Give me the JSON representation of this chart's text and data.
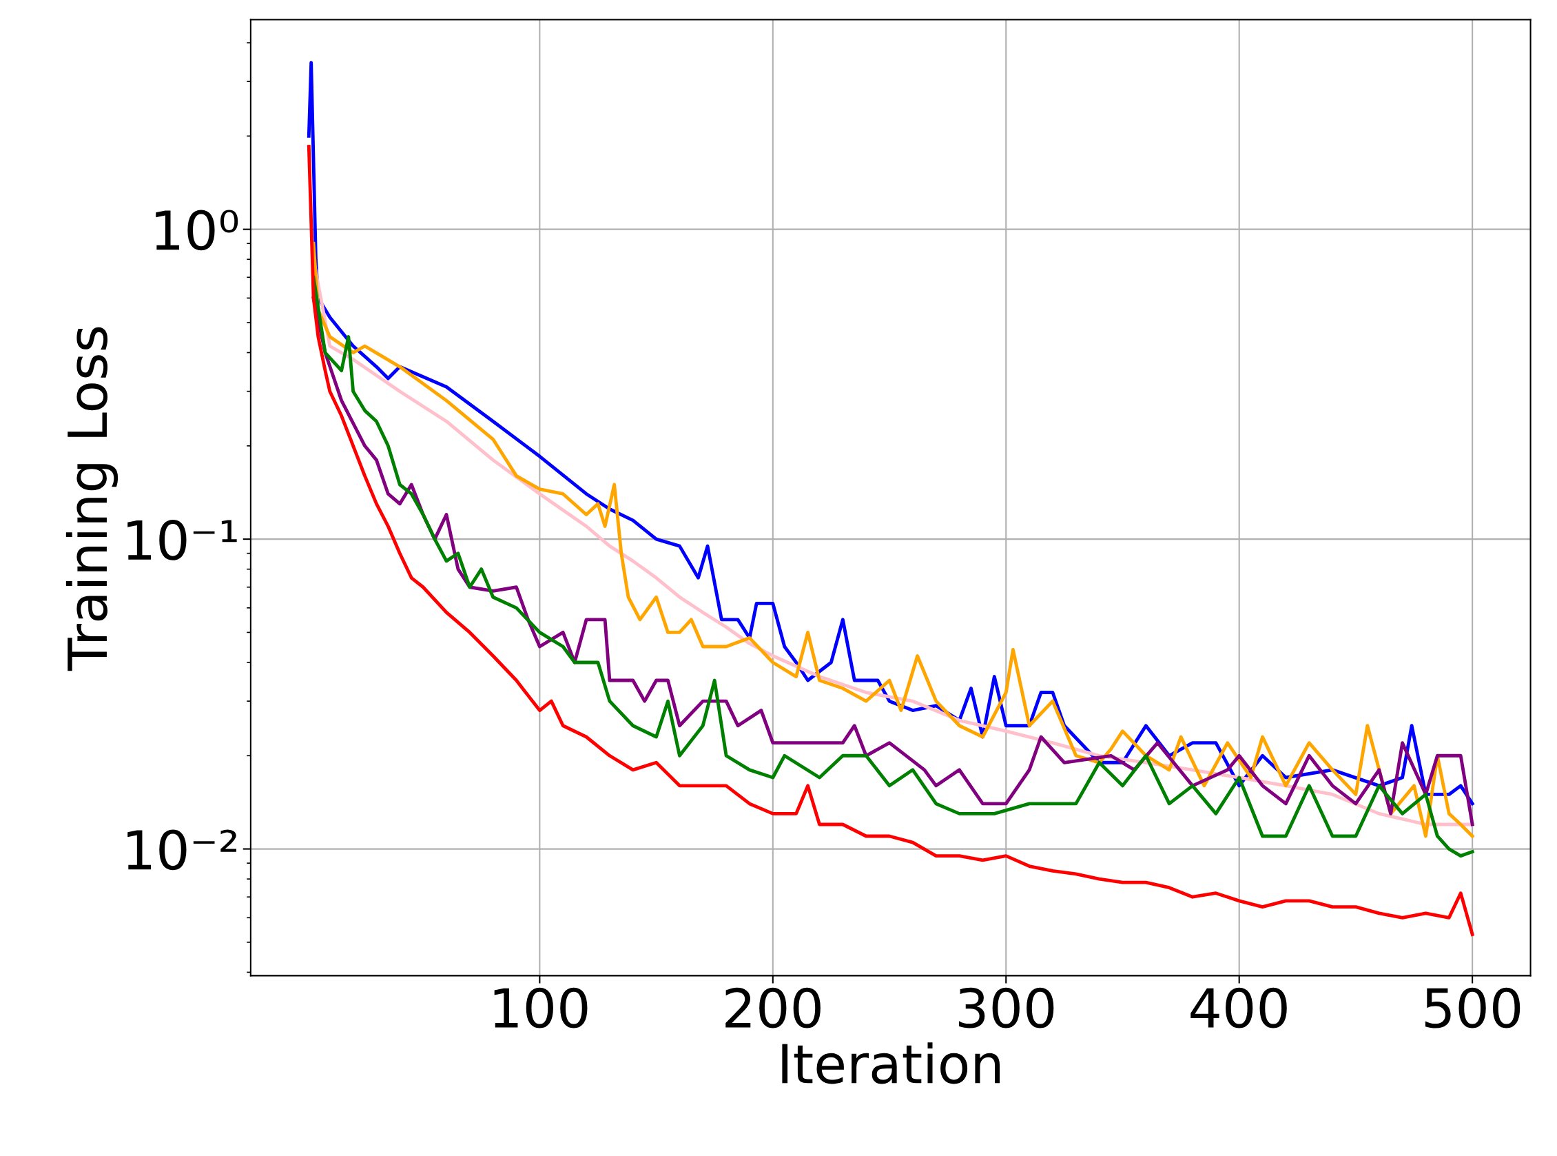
{
  "chart_data": {
    "type": "line",
    "xlabel": "Iteration",
    "ylabel": "Training Loss",
    "log": "y",
    "grid": true,
    "marker": "none",
    "line_style": "solid",
    "xlim": [
      -23.95,
      524.95
    ],
    "xticks": [
      100,
      200,
      300,
      400,
      500
    ],
    "ylim": [
      0.0039,
      4.75
    ],
    "yticks": [
      {
        "value": 1,
        "label": "10⁰"
      },
      {
        "value": 0.1,
        "label": "10⁻¹"
      },
      {
        "value": 0.01,
        "label": "10⁻²"
      }
    ],
    "series": [
      {
        "color": "#0000ff",
        "x": [
          1,
          2,
          4,
          5,
          10,
          20,
          30,
          35,
          40,
          60,
          80,
          100,
          120,
          130,
          140,
          150,
          160,
          168,
          172,
          178,
          185,
          190,
          193,
          200,
          205,
          210,
          215,
          225,
          230,
          235,
          245,
          250,
          260,
          270,
          280,
          285,
          290,
          295,
          300,
          310,
          315,
          320,
          325,
          340,
          350,
          360,
          370,
          380,
          390,
          400,
          410,
          420,
          440,
          460,
          470,
          474,
          480,
          490,
          495,
          500
        ],
        "values": [
          2.0,
          3.45,
          0.8,
          0.6,
          0.52,
          0.42,
          0.36,
          0.33,
          0.36,
          0.31,
          0.24,
          0.185,
          0.14,
          0.125,
          0.115,
          0.1,
          0.095,
          0.075,
          0.095,
          0.055,
          0.055,
          0.048,
          0.062,
          0.062,
          0.045,
          0.04,
          0.035,
          0.04,
          0.055,
          0.035,
          0.035,
          0.03,
          0.028,
          0.029,
          0.026,
          0.033,
          0.023,
          0.036,
          0.025,
          0.025,
          0.032,
          0.032,
          0.025,
          0.019,
          0.019,
          0.025,
          0.02,
          0.022,
          0.022,
          0.016,
          0.02,
          0.017,
          0.018,
          0.016,
          0.017,
          0.025,
          0.015,
          0.015,
          0.016,
          0.014
        ]
      },
      {
        "color": "#ffc0cb",
        "x": [
          3,
          10,
          20,
          40,
          60,
          80,
          100,
          120,
          130,
          140,
          150,
          160,
          170,
          180,
          190,
          200,
          220,
          240,
          260,
          280,
          300,
          320,
          340,
          360,
          380,
          400,
          420,
          440,
          460,
          480,
          500
        ],
        "values": [
          0.8,
          0.42,
          0.38,
          0.3,
          0.24,
          0.18,
          0.14,
          0.11,
          0.095,
          0.085,
          0.075,
          0.065,
          0.058,
          0.052,
          0.046,
          0.042,
          0.036,
          0.032,
          0.03,
          0.026,
          0.024,
          0.022,
          0.02,
          0.019,
          0.018,
          0.017,
          0.016,
          0.015,
          0.013,
          0.012,
          0.012
        ]
      },
      {
        "color": "#ffa500",
        "x": [
          3,
          5,
          10,
          20,
          25,
          40,
          60,
          80,
          90,
          100,
          110,
          120,
          125,
          128,
          132,
          135,
          138,
          143,
          150,
          155,
          160,
          165,
          170,
          180,
          190,
          200,
          210,
          215,
          220,
          230,
          240,
          250,
          255,
          262,
          270,
          280,
          290,
          300,
          303,
          310,
          320,
          330,
          340,
          345,
          350,
          360,
          370,
          375,
          385,
          395,
          405,
          410,
          420,
          430,
          440,
          450,
          455,
          465,
          475,
          480,
          485,
          490,
          495,
          500
        ],
        "values": [
          0.9,
          0.55,
          0.45,
          0.4,
          0.42,
          0.36,
          0.28,
          0.21,
          0.16,
          0.145,
          0.14,
          0.12,
          0.13,
          0.11,
          0.15,
          0.09,
          0.065,
          0.055,
          0.065,
          0.05,
          0.05,
          0.055,
          0.045,
          0.045,
          0.048,
          0.04,
          0.036,
          0.05,
          0.035,
          0.033,
          0.03,
          0.035,
          0.028,
          0.042,
          0.03,
          0.025,
          0.023,
          0.032,
          0.044,
          0.025,
          0.03,
          0.02,
          0.019,
          0.021,
          0.024,
          0.02,
          0.018,
          0.023,
          0.016,
          0.022,
          0.017,
          0.023,
          0.016,
          0.022,
          0.018,
          0.015,
          0.025,
          0.013,
          0.016,
          0.011,
          0.02,
          0.013,
          0.012,
          0.011
        ]
      },
      {
        "color": "#800080",
        "x": [
          3,
          8,
          15,
          25,
          30,
          35,
          40,
          45,
          50,
          55,
          60,
          65,
          70,
          80,
          90,
          95,
          100,
          110,
          115,
          120,
          128,
          130,
          140,
          145,
          150,
          155,
          160,
          170,
          180,
          185,
          195,
          200,
          210,
          230,
          235,
          240,
          250,
          265,
          270,
          280,
          290,
          300,
          310,
          315,
          325,
          345,
          355,
          365,
          380,
          395,
          400,
          410,
          420,
          430,
          440,
          450,
          460,
          465,
          470,
          480,
          485,
          495,
          500
        ],
        "values": [
          0.6,
          0.4,
          0.28,
          0.2,
          0.18,
          0.14,
          0.13,
          0.15,
          0.12,
          0.1,
          0.12,
          0.08,
          0.07,
          0.068,
          0.07,
          0.055,
          0.045,
          0.05,
          0.04,
          0.055,
          0.055,
          0.035,
          0.035,
          0.03,
          0.035,
          0.035,
          0.025,
          0.03,
          0.03,
          0.025,
          0.028,
          0.022,
          0.022,
          0.022,
          0.025,
          0.02,
          0.022,
          0.018,
          0.016,
          0.018,
          0.014,
          0.014,
          0.018,
          0.023,
          0.019,
          0.02,
          0.018,
          0.022,
          0.016,
          0.018,
          0.02,
          0.016,
          0.014,
          0.02,
          0.016,
          0.014,
          0.018,
          0.013,
          0.022,
          0.015,
          0.02,
          0.02,
          0.012
        ]
      },
      {
        "color": "#008000",
        "x": [
          3,
          8,
          15,
          18,
          20,
          25,
          30,
          35,
          40,
          45,
          50,
          55,
          60,
          65,
          70,
          75,
          80,
          90,
          100,
          110,
          115,
          125,
          130,
          140,
          150,
          155,
          160,
          170,
          175,
          180,
          190,
          200,
          205,
          220,
          230,
          240,
          250,
          260,
          270,
          280,
          295,
          310,
          330,
          340,
          350,
          360,
          370,
          380,
          390,
          400,
          410,
          420,
          430,
          440,
          450,
          460,
          470,
          480,
          485,
          490,
          495,
          500
        ],
        "values": [
          0.7,
          0.4,
          0.35,
          0.45,
          0.3,
          0.26,
          0.24,
          0.2,
          0.15,
          0.14,
          0.12,
          0.1,
          0.085,
          0.09,
          0.07,
          0.08,
          0.065,
          0.06,
          0.05,
          0.045,
          0.04,
          0.04,
          0.03,
          0.025,
          0.023,
          0.03,
          0.02,
          0.025,
          0.035,
          0.02,
          0.018,
          0.017,
          0.02,
          0.017,
          0.02,
          0.02,
          0.016,
          0.018,
          0.014,
          0.013,
          0.013,
          0.014,
          0.014,
          0.019,
          0.016,
          0.02,
          0.014,
          0.016,
          0.013,
          0.017,
          0.011,
          0.011,
          0.016,
          0.011,
          0.011,
          0.016,
          0.013,
          0.015,
          0.011,
          0.01,
          0.0095,
          0.0098
        ]
      },
      {
        "color": "#ff0000",
        "x": [
          1,
          3,
          5,
          8,
          10,
          15,
          20,
          25,
          30,
          35,
          40,
          45,
          50,
          60,
          70,
          80,
          90,
          100,
          105,
          110,
          120,
          130,
          140,
          150,
          160,
          170,
          180,
          190,
          200,
          210,
          215,
          220,
          230,
          240,
          250,
          260,
          270,
          280,
          290,
          300,
          310,
          320,
          330,
          340,
          350,
          360,
          370,
          380,
          390,
          400,
          410,
          420,
          430,
          440,
          450,
          460,
          470,
          480,
          490,
          495,
          500
        ],
        "values": [
          1.85,
          0.6,
          0.45,
          0.35,
          0.3,
          0.25,
          0.2,
          0.16,
          0.13,
          0.11,
          0.09,
          0.075,
          0.07,
          0.058,
          0.05,
          0.042,
          0.035,
          0.028,
          0.03,
          0.025,
          0.023,
          0.02,
          0.018,
          0.019,
          0.016,
          0.016,
          0.016,
          0.014,
          0.013,
          0.013,
          0.016,
          0.012,
          0.012,
          0.011,
          0.011,
          0.0105,
          0.0095,
          0.0095,
          0.0092,
          0.0095,
          0.0088,
          0.0085,
          0.0083,
          0.008,
          0.0078,
          0.0078,
          0.0075,
          0.007,
          0.0072,
          0.0068,
          0.0065,
          0.0068,
          0.0068,
          0.0065,
          0.0065,
          0.0062,
          0.006,
          0.0062,
          0.006,
          0.0072,
          0.0053
        ]
      }
    ]
  }
}
